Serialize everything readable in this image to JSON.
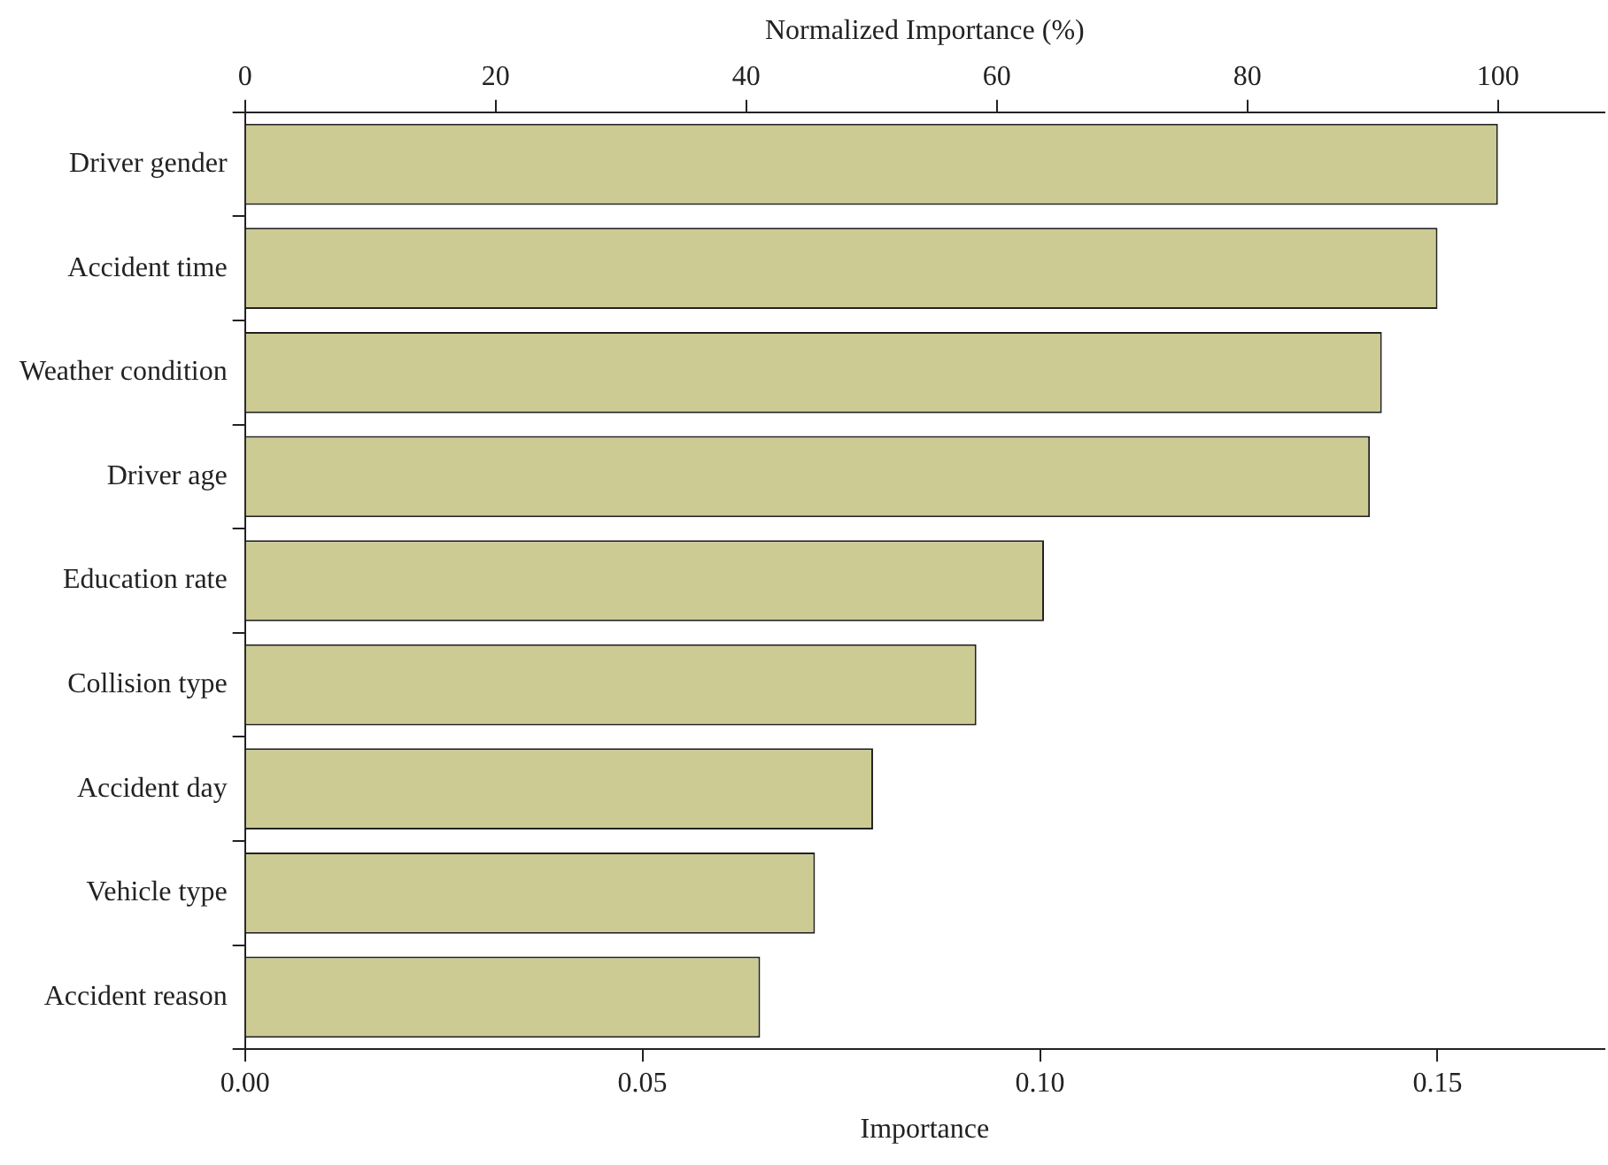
{
  "chart_data": {
    "type": "bar",
    "orientation": "horizontal",
    "xlabel": "Importance",
    "x2label": "Normalized Importance (%)",
    "categories": [
      "Driver gender",
      "Accident time",
      "Weather condition",
      "Driver age",
      "Education rate",
      "Collision type",
      "Accident day",
      "Vehicle type",
      "Accident reason"
    ],
    "values": [
      0.1576,
      0.15,
      0.143,
      0.1415,
      0.1005,
      0.092,
      0.079,
      0.0717,
      0.0648
    ],
    "color": "#cdcb94",
    "xlim": [
      0,
      0.171
    ],
    "xticks": [
      {
        "value": 0,
        "label": "0.00"
      },
      {
        "value": 0.05,
        "label": "0.05"
      },
      {
        "value": 0.1,
        "label": "0.10"
      },
      {
        "value": 0.15,
        "label": "0.15"
      }
    ],
    "x2lim": [
      0,
      108.5
    ],
    "x2ticks": [
      0,
      20,
      40,
      60,
      80,
      100
    ],
    "grid": false
  }
}
